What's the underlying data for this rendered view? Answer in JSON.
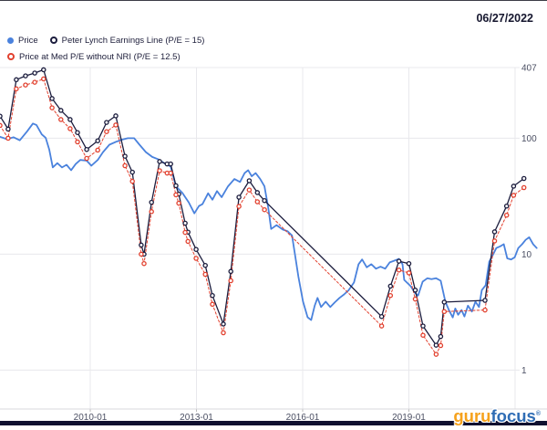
{
  "header": {
    "date": "06/27/2022"
  },
  "legend": {
    "items": [
      {
        "label": "Price",
        "color": "#4a82dd",
        "marker": "dot"
      },
      {
        "label": "Peter Lynch Earnings Line (P/E = 15)",
        "color": "#1b1c3d",
        "marker": "ring"
      },
      {
        "label": "Price at Med P/E without NRI (P/E = 12.5)",
        "color": "#e2412f",
        "marker": "ring"
      }
    ]
  },
  "watermark": {
    "guru": "guru",
    "focus": "focus",
    "reg": "®"
  },
  "colors": {
    "price_line": "#4a82dd",
    "lynch_line": "#1b1c3d",
    "medpe_line": "#e2412f",
    "grid": "#e8e8ec",
    "axis": "#d8d8dc",
    "tick_text": "#4b4f63",
    "bottom_bar": "#0f1030"
  },
  "chart_data": {
    "type": "line",
    "title": "",
    "xlabel": "",
    "ylabel": "",
    "y_scale": "log",
    "grid": true,
    "legend_position": "top-left",
    "x_range": [
      2007.45,
      2022.9
    ],
    "y_range": [
      0.45,
      407
    ],
    "y_ticks": [
      {
        "value": 407,
        "label": "407"
      },
      {
        "value": 100,
        "label": "100"
      },
      {
        "value": 10,
        "label": "10"
      },
      {
        "value": 1,
        "label": "1"
      }
    ],
    "x_ticks": [
      {
        "value": 2010,
        "label": "2010-01"
      },
      {
        "value": 2013,
        "label": "2013-01"
      },
      {
        "value": 2016,
        "label": "2016-01"
      },
      {
        "value": 2019,
        "label": "2019-01"
      },
      {
        "value": 2022,
        "label": ""
      }
    ],
    "series": [
      {
        "name": "Price",
        "color": "#4a82dd",
        "style": "solid",
        "width": 1.8,
        "markers": false,
        "points": [
          [
            2007.45,
            103
          ],
          [
            2007.65,
            98
          ],
          [
            2007.83,
            102
          ],
          [
            2008.01,
            96
          ],
          [
            2008.22,
            115
          ],
          [
            2008.38,
            134
          ],
          [
            2008.48,
            130
          ],
          [
            2008.63,
            108
          ],
          [
            2008.74,
            101
          ],
          [
            2008.84,
            80
          ],
          [
            2008.94,
            56
          ],
          [
            2009.07,
            61
          ],
          [
            2009.2,
            56
          ],
          [
            2009.33,
            59
          ],
          [
            2009.46,
            53
          ],
          [
            2009.59,
            60
          ],
          [
            2009.72,
            65
          ],
          [
            2009.9,
            64
          ],
          [
            2010.03,
            58
          ],
          [
            2010.21,
            65
          ],
          [
            2010.36,
            76
          ],
          [
            2010.54,
            88
          ],
          [
            2010.72,
            93
          ],
          [
            2010.88,
            97
          ],
          [
            2011.06,
            100
          ],
          [
            2011.24,
            100
          ],
          [
            2011.39,
            88
          ],
          [
            2011.57,
            76
          ],
          [
            2011.75,
            69
          ],
          [
            2011.91,
            66
          ],
          [
            2012.09,
            61
          ],
          [
            2012.27,
            57
          ],
          [
            2012.42,
            38.5
          ],
          [
            2012.6,
            33.8
          ],
          [
            2012.78,
            28
          ],
          [
            2012.94,
            22.5
          ],
          [
            2013.07,
            26
          ],
          [
            2013.17,
            27
          ],
          [
            2013.33,
            33.5
          ],
          [
            2013.45,
            29.5
          ],
          [
            2013.58,
            35
          ],
          [
            2013.71,
            31
          ],
          [
            2013.89,
            38.5
          ],
          [
            2014.07,
            44.5
          ],
          [
            2014.23,
            42
          ],
          [
            2014.36,
            50
          ],
          [
            2014.46,
            53
          ],
          [
            2014.56,
            47
          ],
          [
            2014.67,
            50
          ],
          [
            2014.8,
            44.5
          ],
          [
            2014.92,
            38.5
          ],
          [
            2015.03,
            25
          ],
          [
            2015.11,
            16.5
          ],
          [
            2015.26,
            17.8
          ],
          [
            2015.44,
            16.3
          ],
          [
            2015.57,
            15.8
          ],
          [
            2015.7,
            14.5
          ],
          [
            2015.78,
            10
          ],
          [
            2015.88,
            6.4
          ],
          [
            2016.01,
            3.9
          ],
          [
            2016.14,
            2.86
          ],
          [
            2016.24,
            2.7
          ],
          [
            2016.34,
            3.6
          ],
          [
            2016.42,
            4.2
          ],
          [
            2016.52,
            3.5
          ],
          [
            2016.65,
            3.9
          ],
          [
            2016.78,
            3.5
          ],
          [
            2016.91,
            3.85
          ],
          [
            2017.04,
            4.2
          ],
          [
            2017.17,
            4.5
          ],
          [
            2017.3,
            4.9
          ],
          [
            2017.45,
            5.7
          ],
          [
            2017.58,
            8.2
          ],
          [
            2017.68,
            9.0
          ],
          [
            2017.81,
            7.7
          ],
          [
            2017.94,
            8.2
          ],
          [
            2018.07,
            7.5
          ],
          [
            2018.2,
            7.8
          ],
          [
            2018.33,
            7.5
          ],
          [
            2018.46,
            8.5
          ],
          [
            2018.59,
            8.8
          ],
          [
            2018.72,
            9.1
          ],
          [
            2018.82,
            8.2
          ],
          [
            2018.87,
            6.0
          ],
          [
            2019.05,
            5.3
          ],
          [
            2019.18,
            4.6
          ],
          [
            2019.26,
            4.4
          ],
          [
            2019.39,
            5.8
          ],
          [
            2019.52,
            6.2
          ],
          [
            2019.64,
            6.1
          ],
          [
            2019.77,
            6.2
          ],
          [
            2019.9,
            5.9
          ],
          [
            2020.03,
            3.9
          ],
          [
            2020.13,
            3.3
          ],
          [
            2020.24,
            2.85
          ],
          [
            2020.31,
            3.4
          ],
          [
            2020.39,
            3.0
          ],
          [
            2020.49,
            3.3
          ],
          [
            2020.57,
            2.9
          ],
          [
            2020.67,
            3.6
          ],
          [
            2020.78,
            3.2
          ],
          [
            2020.88,
            3.9
          ],
          [
            2020.98,
            3.5
          ],
          [
            2021.06,
            4.9
          ],
          [
            2021.17,
            5.4
          ],
          [
            2021.27,
            8.6
          ],
          [
            2021.37,
            9.8
          ],
          [
            2021.47,
            11.3
          ],
          [
            2021.58,
            11.7
          ],
          [
            2021.68,
            12.2
          ],
          [
            2021.78,
            9.2
          ],
          [
            2021.89,
            9.0
          ],
          [
            2021.99,
            9.4
          ],
          [
            2022.09,
            11.3
          ],
          [
            2022.2,
            12.2
          ],
          [
            2022.3,
            13.3
          ],
          [
            2022.4,
            14
          ],
          [
            2022.51,
            12.2
          ],
          [
            2022.61,
            11.3
          ]
        ]
      },
      {
        "name": "Peter Lynch Earnings Line (P/E = 15)",
        "color": "#1b1c3d",
        "style": "solid",
        "width": 1.3,
        "markers": true,
        "points": [
          [
            2007.45,
            155
          ],
          [
            2007.68,
            120
          ],
          [
            2007.91,
            320
          ],
          [
            2008.17,
            345
          ],
          [
            2008.43,
            365
          ],
          [
            2008.68,
            390
          ],
          [
            2008.92,
            220
          ],
          [
            2009.17,
            174
          ],
          [
            2009.43,
            145
          ],
          [
            2009.64,
            112
          ],
          [
            2009.9,
            80
          ],
          [
            2010.21,
            95
          ],
          [
            2010.46,
            137
          ],
          [
            2010.72,
            156
          ],
          [
            2010.98,
            70
          ],
          [
            2011.19,
            51
          ],
          [
            2011.44,
            12
          ],
          [
            2011.52,
            10
          ],
          [
            2011.73,
            28
          ],
          [
            2011.96,
            63
          ],
          [
            2012.17,
            60
          ],
          [
            2012.27,
            60
          ],
          [
            2012.42,
            39
          ],
          [
            2012.5,
            33
          ],
          [
            2012.68,
            18.5
          ],
          [
            2012.76,
            15.5
          ],
          [
            2012.99,
            11
          ],
          [
            2013.25,
            8
          ],
          [
            2013.45,
            4.4
          ],
          [
            2013.76,
            2.5
          ],
          [
            2013.97,
            7.1
          ],
          [
            2014.2,
            31
          ],
          [
            2014.49,
            43
          ],
          [
            2014.72,
            34
          ],
          [
            2014.92,
            29
          ],
          [
            2018.23,
            2.9
          ],
          [
            2018.48,
            5.3
          ],
          [
            2018.72,
            8.7
          ],
          [
            2019.0,
            8.3
          ],
          [
            2019.18,
            4.9
          ],
          [
            2019.4,
            2.4
          ],
          [
            2019.77,
            1.64
          ],
          [
            2019.9,
            1.95
          ],
          [
            2020.0,
            3.86
          ],
          [
            2021.15,
            4.0
          ],
          [
            2021.42,
            15.6
          ],
          [
            2021.76,
            26
          ],
          [
            2021.96,
            38.6
          ],
          [
            2022.25,
            45
          ]
        ]
      },
      {
        "name": "Price at Med P/E without NRI (P/E = 12.5)",
        "color": "#e2412f",
        "style": "dashed",
        "width": 1,
        "markers": true,
        "points": [
          [
            2007.45,
            129
          ],
          [
            2007.68,
            100
          ],
          [
            2007.91,
            267
          ],
          [
            2008.17,
            288
          ],
          [
            2008.43,
            304
          ],
          [
            2008.68,
            325
          ],
          [
            2008.92,
            183
          ],
          [
            2009.17,
            145
          ],
          [
            2009.43,
            121
          ],
          [
            2009.64,
            93
          ],
          [
            2009.9,
            67
          ],
          [
            2010.21,
            79
          ],
          [
            2010.46,
            114
          ],
          [
            2010.72,
            130
          ],
          [
            2010.98,
            58
          ],
          [
            2011.19,
            42.5
          ],
          [
            2011.44,
            10
          ],
          [
            2011.52,
            8.3
          ],
          [
            2011.73,
            23.3
          ],
          [
            2011.96,
            52.5
          ],
          [
            2012.17,
            50
          ],
          [
            2012.27,
            50
          ],
          [
            2012.42,
            32.5
          ],
          [
            2012.5,
            27.5
          ],
          [
            2012.68,
            15.4
          ],
          [
            2012.76,
            12.9
          ],
          [
            2012.99,
            9.2
          ],
          [
            2013.25,
            6.7
          ],
          [
            2013.45,
            3.7
          ],
          [
            2013.76,
            2.1
          ],
          [
            2013.97,
            5.9
          ],
          [
            2014.2,
            25.8
          ],
          [
            2014.49,
            35.8
          ],
          [
            2014.72,
            28.3
          ],
          [
            2014.92,
            24.2
          ],
          [
            2018.23,
            2.4
          ],
          [
            2018.48,
            4.4
          ],
          [
            2018.72,
            7.3
          ],
          [
            2019.0,
            6.9
          ],
          [
            2019.18,
            4.1
          ],
          [
            2019.4,
            2.0
          ],
          [
            2019.77,
            1.37
          ],
          [
            2019.9,
            1.63
          ],
          [
            2020.0,
            3.2
          ],
          [
            2021.15,
            3.3
          ],
          [
            2021.42,
            13.0
          ],
          [
            2021.76,
            21.7
          ],
          [
            2021.96,
            32.2
          ],
          [
            2022.25,
            37.5
          ]
        ]
      }
    ]
  }
}
